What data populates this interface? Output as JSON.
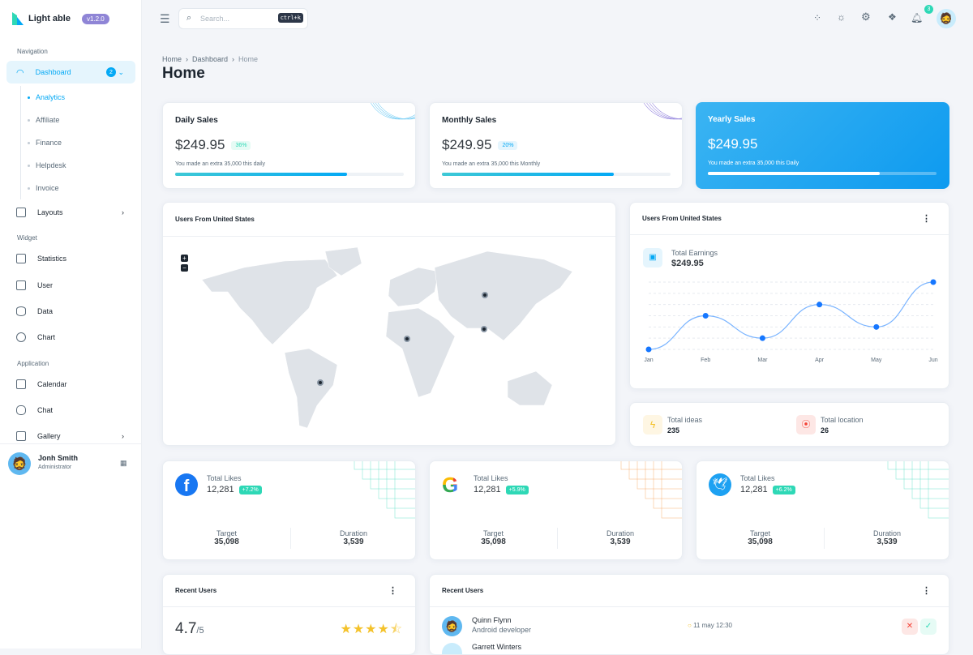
{
  "app": {
    "name": "Light able",
    "version": "v1.2.0"
  },
  "sidebar": {
    "sections": [
      "Navigation",
      "Widget",
      "Application"
    ],
    "dashboard": {
      "label": "Dashboard",
      "badge": "2"
    },
    "sub_items": [
      {
        "label": "Analytics",
        "active": true
      },
      {
        "label": "Affiliate"
      },
      {
        "label": "Finance"
      },
      {
        "label": "Helpdesk"
      },
      {
        "label": "Invoice"
      }
    ],
    "layouts": "Layouts",
    "widget_items": [
      {
        "label": "Statistics",
        "icon": "presentation-icon"
      },
      {
        "label": "User",
        "icon": "user-card-icon"
      },
      {
        "label": "Data",
        "icon": "database-icon"
      },
      {
        "label": "Chart",
        "icon": "pie-chart-icon"
      }
    ],
    "app_items": [
      {
        "label": "Calendar",
        "icon": "calendar-icon"
      },
      {
        "label": "Chat",
        "icon": "chat-icon"
      },
      {
        "label": "Gallery",
        "icon": "gallery-icon"
      }
    ],
    "user": {
      "name": "Jonh Smith",
      "role": "Administrator"
    }
  },
  "header": {
    "search_placeholder": "Search...",
    "shortcut": "ctrl+k",
    "notifications": "3"
  },
  "breadcrumb": [
    "Home",
    "Dashboard",
    "Home"
  ],
  "page_title": "Home",
  "sales": [
    {
      "title": "Daily Sales",
      "amount": "$249.95",
      "pct": "36%",
      "note": "You made an extra 35,000 this daily",
      "progress": 75
    },
    {
      "title": "Monthly Sales",
      "amount": "$249.95",
      "pct": "20%",
      "note": "You made an extra 35,000 this Monthly",
      "progress": 75
    },
    {
      "title": "Yearly Sales",
      "amount": "$249.95",
      "note": "You made an extra 35,000 this Daily",
      "progress": 75
    }
  ],
  "map_card": {
    "title": "Users From United States",
    "zoom_in": "+",
    "zoom_out": "−"
  },
  "earnings": {
    "title": "Users From United States",
    "label": "Total Earnings",
    "value": "$249.95"
  },
  "chart_data": {
    "type": "line",
    "categories": [
      "Jan",
      "Feb",
      "Mar",
      "Apr",
      "May",
      "Jun"
    ],
    "values": [
      0,
      3,
      1,
      4,
      2,
      6
    ],
    "ylim": [
      0,
      6
    ],
    "grid": true,
    "color": "#1677ff"
  },
  "stats": [
    {
      "label": "Total ideas",
      "value": "235",
      "color": "#f4c22b"
    },
    {
      "label": "Total location",
      "value": "26",
      "color": "#f44236"
    }
  ],
  "social": [
    {
      "icon": "facebook-icon",
      "label": "Total Likes",
      "value": "12,281",
      "change": "+7.2%",
      "target_label": "Target",
      "target": "35,098",
      "duration_label": "Duration",
      "duration": "3,539"
    },
    {
      "icon": "google-icon",
      "label": "Total Likes",
      "value": "12,281",
      "change": "+5.9%",
      "target_label": "Target",
      "target": "35,098",
      "duration_label": "Duration",
      "duration": "3,539"
    },
    {
      "icon": "twitter-icon",
      "label": "Total Likes",
      "value": "12,281",
      "change": "+6.2%",
      "target_label": "Target",
      "target": "35,098",
      "duration_label": "Duration",
      "duration": "3,539"
    }
  ],
  "rating_card": {
    "title": "Recent Users",
    "rating": "4.7",
    "out_of": "/5",
    "stars": 4.5
  },
  "recent_users": {
    "title": "Recent Users",
    "rows": [
      {
        "name": "Quinn Flynn",
        "role": "Android developer",
        "time": "11 may 12:30"
      },
      {
        "name": "Garrett Winters",
        "role": "",
        "time": ""
      }
    ]
  }
}
